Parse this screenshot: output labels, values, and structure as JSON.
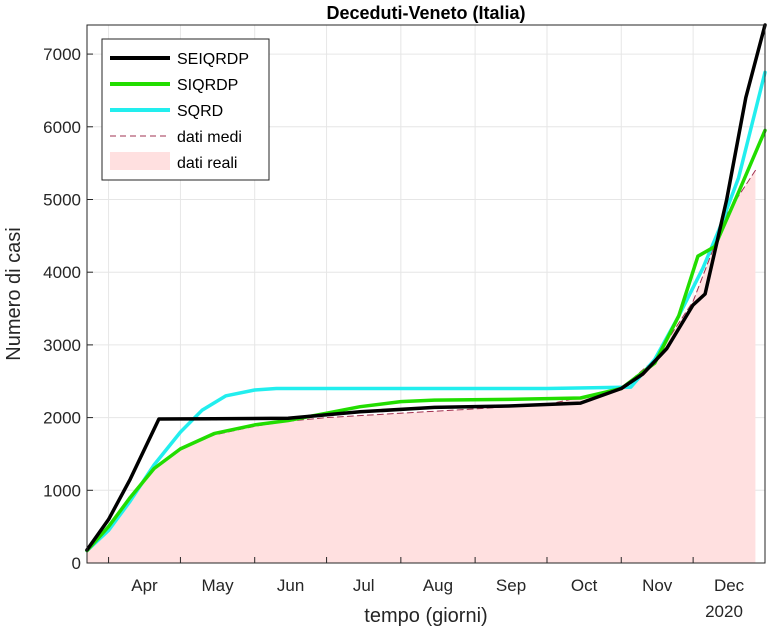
{
  "chart_data": {
    "type": "line",
    "title": "Deceduti-Veneto (Italia)",
    "xlabel": "tempo (giorni)",
    "ylabel": "Numero di casi",
    "x_year_label": "2020",
    "x_ticks": [
      "Apr",
      "May",
      "Jun",
      "Jul",
      "Aug",
      "Sep",
      "Oct",
      "Nov",
      "Dec"
    ],
    "y_ticks": [
      "0",
      "1000",
      "2000",
      "3000",
      "4000",
      "5000",
      "6000",
      "7000"
    ],
    "ylim": [
      0,
      7400
    ],
    "grid": true,
    "legend_position": "top-left",
    "series": [
      {
        "name": "SEIQRDP",
        "color": "#000000",
        "style": "solid",
        "points": [
          [
            "2020-03-23",
            180
          ],
          [
            "2020-04-01",
            600
          ],
          [
            "2020-04-10",
            1150
          ],
          [
            "2020-04-22",
            1980
          ],
          [
            "2020-05-15",
            1985
          ],
          [
            "2020-06-15",
            1990
          ],
          [
            "2020-07-15",
            2080
          ],
          [
            "2020-08-15",
            2140
          ],
          [
            "2020-09-15",
            2160
          ],
          [
            "2020-10-15",
            2200
          ],
          [
            "2020-11-01",
            2400
          ],
          [
            "2020-11-10",
            2600
          ],
          [
            "2020-11-20",
            2950
          ],
          [
            "2020-12-01",
            3550
          ],
          [
            "2020-12-06",
            3700
          ],
          [
            "2020-12-15",
            5000
          ],
          [
            "2020-12-23",
            6400
          ],
          [
            "2020-12-31",
            7400
          ]
        ]
      },
      {
        "name": "SIQRDP",
        "color": "#22dd00",
        "style": "solid",
        "points": [
          [
            "2020-03-23",
            170
          ],
          [
            "2020-04-01",
            500
          ],
          [
            "2020-04-10",
            900
          ],
          [
            "2020-04-20",
            1300
          ],
          [
            "2020-05-01",
            1570
          ],
          [
            "2020-05-15",
            1780
          ],
          [
            "2020-06-01",
            1900
          ],
          [
            "2020-06-15",
            1960
          ],
          [
            "2020-07-01",
            2060
          ],
          [
            "2020-07-15",
            2150
          ],
          [
            "2020-08-01",
            2220
          ],
          [
            "2020-08-15",
            2240
          ],
          [
            "2020-09-15",
            2250
          ],
          [
            "2020-10-15",
            2270
          ],
          [
            "2020-11-01",
            2400
          ],
          [
            "2020-11-15",
            2750
          ],
          [
            "2020-11-25",
            3400
          ],
          [
            "2020-12-03",
            4220
          ],
          [
            "2020-12-10",
            4350
          ],
          [
            "2020-12-20",
            5100
          ],
          [
            "2020-12-31",
            5950
          ]
        ]
      },
      {
        "name": "SQRD",
        "color": "#22eeee",
        "style": "solid",
        "points": [
          [
            "2020-03-23",
            170
          ],
          [
            "2020-04-01",
            450
          ],
          [
            "2020-04-10",
            850
          ],
          [
            "2020-04-20",
            1350
          ],
          [
            "2020-05-01",
            1800
          ],
          [
            "2020-05-10",
            2100
          ],
          [
            "2020-05-20",
            2300
          ],
          [
            "2020-06-01",
            2380
          ],
          [
            "2020-06-10",
            2400
          ],
          [
            "2020-07-01",
            2400
          ],
          [
            "2020-08-01",
            2400
          ],
          [
            "2020-09-01",
            2400
          ],
          [
            "2020-10-01",
            2400
          ],
          [
            "2020-11-05",
            2420
          ],
          [
            "2020-11-15",
            2800
          ],
          [
            "2020-11-25",
            3400
          ],
          [
            "2020-12-05",
            4050
          ],
          [
            "2020-12-12",
            4600
          ],
          [
            "2020-12-20",
            5300
          ],
          [
            "2020-12-31",
            6750
          ]
        ]
      },
      {
        "name": "dati medi",
        "color": "#a03050",
        "style": "dashed",
        "points": [
          [
            "2020-03-23",
            170
          ],
          [
            "2020-04-01",
            500
          ],
          [
            "2020-04-10",
            900
          ],
          [
            "2020-04-20",
            1300
          ],
          [
            "2020-05-01",
            1560
          ],
          [
            "2020-05-15",
            1760
          ],
          [
            "2020-06-01",
            1880
          ],
          [
            "2020-06-15",
            1950
          ],
          [
            "2020-07-01",
            2000
          ],
          [
            "2020-08-01",
            2060
          ],
          [
            "2020-09-01",
            2120
          ],
          [
            "2020-10-01",
            2180
          ],
          [
            "2020-11-01",
            2400
          ],
          [
            "2020-11-15",
            2800
          ],
          [
            "2020-12-01",
            3600
          ],
          [
            "2020-12-15",
            4800
          ],
          [
            "2020-12-27",
            5400
          ]
        ]
      }
    ],
    "area": {
      "name": "dati reali",
      "color": "#ffe0e0",
      "points": [
        [
          "2020-03-23",
          170
        ],
        [
          "2020-04-01",
          500
        ],
        [
          "2020-04-10",
          900
        ],
        [
          "2020-04-20",
          1300
        ],
        [
          "2020-05-01",
          1560
        ],
        [
          "2020-05-15",
          1760
        ],
        [
          "2020-06-01",
          1880
        ],
        [
          "2020-06-15",
          1950
        ],
        [
          "2020-07-01",
          2000
        ],
        [
          "2020-08-01",
          2060
        ],
        [
          "2020-09-01",
          2120
        ],
        [
          "2020-10-01",
          2180
        ],
        [
          "2020-11-01",
          2400
        ],
        [
          "2020-11-15",
          2800
        ],
        [
          "2020-12-01",
          3600
        ],
        [
          "2020-12-15",
          4800
        ],
        [
          "2020-12-27",
          5400
        ]
      ]
    }
  }
}
